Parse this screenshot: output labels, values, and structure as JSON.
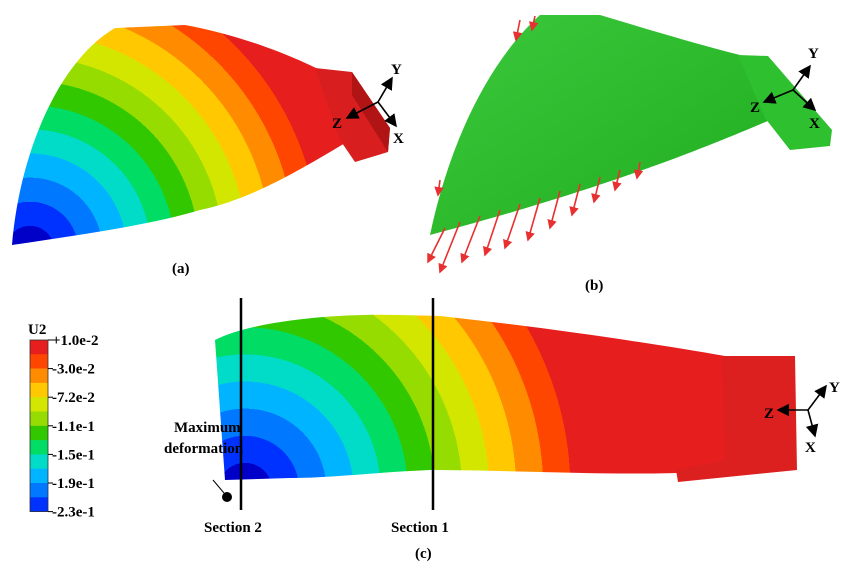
{
  "panels": [
    {
      "label": "(a)",
      "axes": {
        "x": "X",
        "y": "Y",
        "z": "Z"
      }
    },
    {
      "label": "(b)",
      "axes": {
        "x": "X",
        "y": "Y",
        "z": "Z"
      }
    },
    {
      "label": "(c)",
      "axes": {
        "x": "X",
        "y": "Y",
        "z": "Z"
      }
    }
  ],
  "legend": {
    "title": "U2",
    "labels": [
      "+1.0e-2",
      "-3.0e-2",
      "-7.2e-2",
      "-1.1e-1",
      "-1.5e-1",
      "-1.9e-1",
      "-2.3e-1"
    ]
  },
  "annotations": {
    "max_deformation": [
      "Maximum",
      "deformation"
    ],
    "section_2": "Section 2",
    "section_1": "Section 1"
  }
}
